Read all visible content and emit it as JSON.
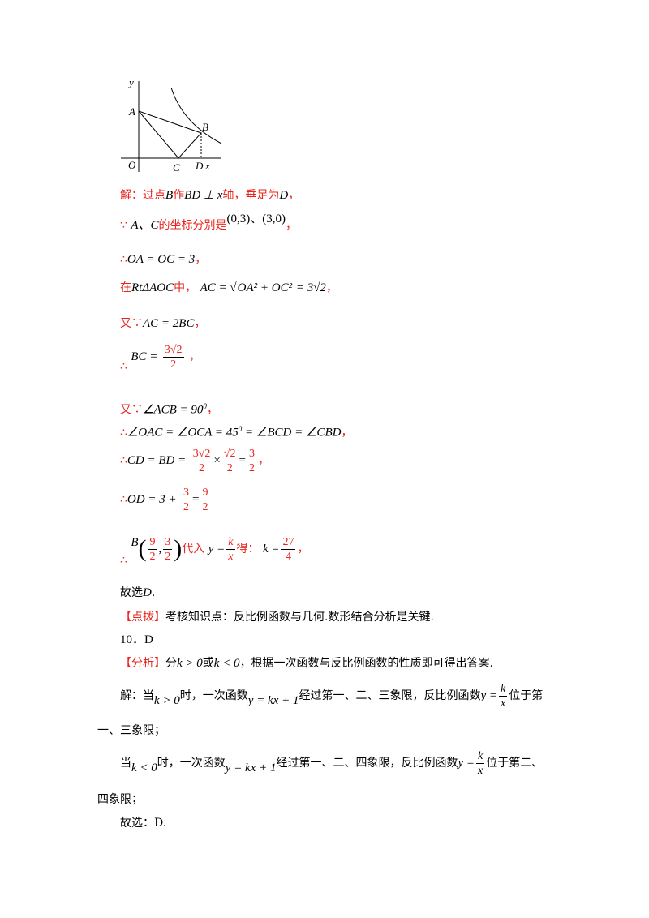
{
  "figure": {
    "labels": {
      "y": "y",
      "A": "A",
      "B": "B",
      "O": "O",
      "C": "C",
      "D": "D",
      "x": "x"
    }
  },
  "solution": {
    "l1": {
      "t1": "解：过点",
      "v1": "B",
      "t2": "作",
      "v2": "BD ⊥ x",
      "t3": "轴，垂足为",
      "v3": "D",
      "t4": "，"
    },
    "l2": {
      "t1": "∵",
      "v1": "A、C",
      "t2": "的坐标分别是",
      "v2": "(0,3)、(3,0)",
      "t3": "，"
    },
    "l3": {
      "t1": "∴",
      "v1": "OA = OC = 3",
      "t2": "，"
    },
    "l4": {
      "t1": "在",
      "v1": "RtΔAOC",
      "t2": "中，",
      "v2a": "AC = √",
      "v2b": "OA² + OC²",
      "v2c": " = 3√2",
      "t3": "，"
    },
    "l5": {
      "t1": "又∵",
      "v1": "AC = 2BC",
      "t2": "，"
    },
    "l6": {
      "t1": "∴",
      "v1": "BC =",
      "num": "3√2",
      "den": "2",
      "t2": "，"
    },
    "l7": {
      "t1": "又∵",
      "v1": "∠ACB = 90",
      "sup": "0",
      "t2": "，"
    },
    "l8": {
      "t1": "∴",
      "v1": "∠OAC = ∠OCA = 45",
      "sup": "0",
      "v2": " = ∠BCD = ∠CBD",
      "t2": "，"
    },
    "l9": {
      "t1": "∴",
      "v1": "CD = BD =",
      "n1": "3√2",
      "d1": "2",
      "op": "×",
      "n2": "√2",
      "d2": "2",
      "eq": "=",
      "n3": "3",
      "d3": "2",
      "t2": "，"
    },
    "l10": {
      "t1": "∴",
      "v1": "OD = 3 +",
      "n1": "3",
      "d1": "2",
      "eq": "=",
      "n2": "9",
      "d2": "2"
    },
    "l11": {
      "t1": "∴",
      "v1": "B",
      "n1": "9",
      "d1": "2",
      "comma": ",",
      "n2": "3",
      "d2": "2",
      "t2": "代入",
      "v2": "y =",
      "n3": "k",
      "d3": "x",
      "t3": "得：",
      "v3": "k =",
      "n4": "27",
      "d4": "4",
      "t4": "，"
    },
    "l12": {
      "t1": "故选",
      "v1": "D",
      "t2": "."
    }
  },
  "tip": {
    "bracket": "【点拨】",
    "text": "考核知识点：反比例函数与几何.数形结合分析是关键."
  },
  "q10": {
    "number": "10．D",
    "analysis": {
      "bracket": "【分析】",
      "t1": "分",
      "v1": "k > 0",
      "t2": "或",
      "v2": "k < 0",
      "t3": "，根据一次函数与反比例函数的性质即可得出答案."
    },
    "p1": {
      "t1": "解：当",
      "v1": "k > 0",
      "t2": "时，一次函数",
      "v2": "y = kx + 1",
      "t3": "经过第一、二、三象限，反比例函数",
      "v3": "y =",
      "n": "k",
      "d": "x",
      "t4": "位于第"
    },
    "p1b": "一、三象限；",
    "p2": {
      "t1": "当",
      "v1": "k < 0",
      "t2": "时，一次函数",
      "v2": "y = kx + 1",
      "t3": "经过第一、二、四象限，反比例函数",
      "v3": "y =",
      "n": "k",
      "d": "x",
      "t4": "位于第二、"
    },
    "p2b": "四象限；",
    "answer": "故选：D."
  }
}
